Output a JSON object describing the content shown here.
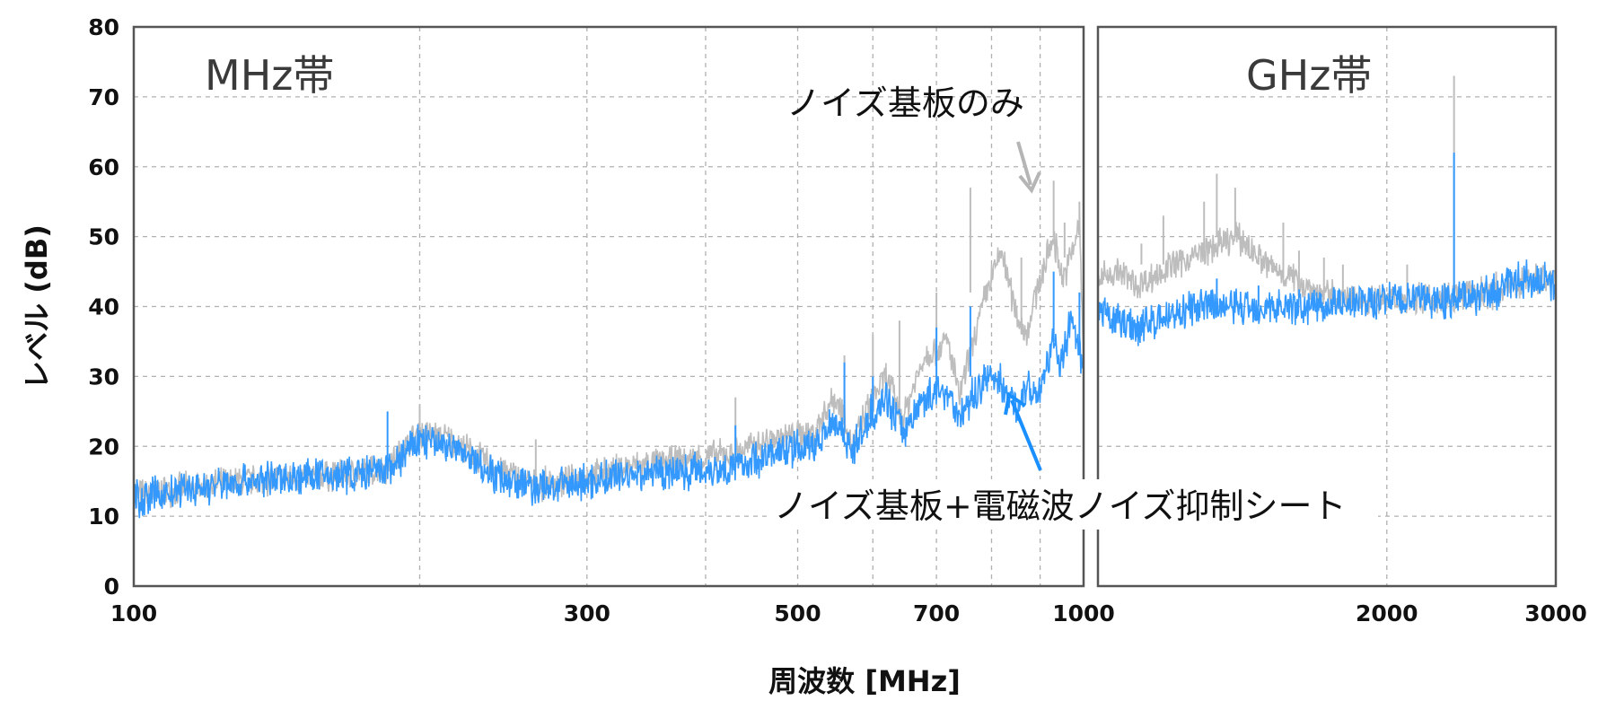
{
  "chart_data": {
    "type": "line",
    "ylabel": "レベル (dB)",
    "xlabel": "周波数 [MHz]",
    "ylim": [
      0,
      80
    ],
    "yticks": [
      "0",
      "10",
      "20",
      "30",
      "40",
      "50",
      "60",
      "70",
      "80"
    ],
    "grid": true,
    "xscale": "log",
    "panels": [
      {
        "label": "MHz帯",
        "xlim": [
          100,
          1000
        ],
        "xticks": [
          "100",
          "300",
          "500",
          "700",
          "1000"
        ],
        "xgrid": [
          200,
          300,
          400,
          500,
          600,
          700,
          800,
          900
        ]
      },
      {
        "label": "GHz帯",
        "xlim": [
          1000,
          3000
        ],
        "xticks": [
          "2000",
          "3000"
        ],
        "xgrid": [
          2000
        ]
      }
    ],
    "colors": {
      "board_only": "#bdbdbd",
      "with_sheet": "#3399ff",
      "axis": "#555555",
      "grid": "#b0b0b0"
    },
    "series": [
      {
        "name": "ノイズ基板のみ",
        "points": [
          [
            100,
            13
          ],
          [
            130,
            15
          ],
          [
            170,
            16
          ],
          [
            185,
            17
          ],
          [
            200,
            22
          ],
          [
            215,
            21
          ],
          [
            240,
            17
          ],
          [
            265,
            14.5
          ],
          [
            290,
            15
          ],
          [
            330,
            17
          ],
          [
            380,
            18
          ],
          [
            430,
            19
          ],
          [
            470,
            21
          ],
          [
            520,
            22
          ],
          [
            545,
            27
          ],
          [
            560,
            25
          ],
          [
            570,
            20
          ],
          [
            600,
            27
          ],
          [
            620,
            30
          ],
          [
            645,
            24
          ],
          [
            680,
            33
          ],
          [
            720,
            35
          ],
          [
            740,
            27
          ],
          [
            790,
            42
          ],
          [
            820,
            48
          ],
          [
            845,
            40
          ],
          [
            870,
            36
          ],
          [
            900,
            44
          ],
          [
            930,
            50
          ],
          [
            950,
            44
          ],
          [
            970,
            47
          ],
          [
            990,
            52
          ],
          [
            1000,
            32
          ],
          [
            1000,
            44
          ],
          [
            1050,
            45
          ],
          [
            1100,
            43
          ],
          [
            1200,
            46
          ],
          [
            1300,
            48
          ],
          [
            1400,
            50
          ],
          [
            1500,
            46
          ],
          [
            1600,
            44
          ],
          [
            1700,
            42
          ],
          [
            1800,
            41
          ],
          [
            2000,
            41
          ],
          [
            2300,
            41.5
          ],
          [
            2600,
            42
          ],
          [
            2800,
            44
          ],
          [
            3000,
            44
          ]
        ],
        "spikes": [
          [
            200,
            26
          ],
          [
            265,
            21
          ],
          [
            430,
            27
          ],
          [
            560,
            33
          ],
          [
            600,
            36
          ],
          [
            640,
            38
          ],
          [
            700,
            42
          ],
          [
            760,
            57
          ],
          [
            860,
            47
          ],
          [
            930,
            58
          ],
          [
            955,
            52
          ],
          [
            990,
            55
          ],
          [
            1110,
            49
          ],
          [
            1170,
            53
          ],
          [
            1290,
            55
          ],
          [
            1330,
            59
          ],
          [
            1390,
            57
          ],
          [
            1470,
            47
          ],
          [
            1560,
            52
          ],
          [
            1620,
            48
          ],
          [
            1720,
            47
          ],
          [
            1800,
            46
          ],
          [
            2100,
            46
          ],
          [
            2350,
            73
          ],
          [
            2600,
            45
          ]
        ]
      },
      {
        "name": "ノイズ基板+電磁波ノイズ抑制シート",
        "points": [
          [
            100,
            12.5
          ],
          [
            130,
            15
          ],
          [
            170,
            16
          ],
          [
            185,
            16.5
          ],
          [
            200,
            21
          ],
          [
            215,
            20
          ],
          [
            240,
            16
          ],
          [
            265,
            14
          ],
          [
            290,
            14.5
          ],
          [
            330,
            16
          ],
          [
            380,
            16.5
          ],
          [
            430,
            17
          ],
          [
            470,
            19
          ],
          [
            520,
            20
          ],
          [
            545,
            24
          ],
          [
            560,
            22
          ],
          [
            570,
            19
          ],
          [
            600,
            25
          ],
          [
            620,
            27
          ],
          [
            645,
            22
          ],
          [
            680,
            27
          ],
          [
            720,
            28
          ],
          [
            740,
            24
          ],
          [
            790,
            30
          ],
          [
            820,
            29
          ],
          [
            845,
            26
          ],
          [
            870,
            28
          ],
          [
            900,
            28
          ],
          [
            930,
            35
          ],
          [
            950,
            32
          ],
          [
            970,
            38
          ],
          [
            990,
            33
          ],
          [
            1000,
            31
          ],
          [
            1000,
            39
          ],
          [
            1050,
            38
          ],
          [
            1100,
            37
          ],
          [
            1200,
            39
          ],
          [
            1300,
            40
          ],
          [
            1400,
            40
          ],
          [
            1500,
            40
          ],
          [
            1600,
            40
          ],
          [
            1800,
            40.5
          ],
          [
            2000,
            41
          ],
          [
            2300,
            41
          ],
          [
            2600,
            42
          ],
          [
            2800,
            44
          ],
          [
            3000,
            43.5
          ]
        ],
        "spikes": [
          [
            185,
            25
          ],
          [
            430,
            23
          ],
          [
            560,
            32
          ],
          [
            600,
            30
          ],
          [
            700,
            37
          ],
          [
            760,
            40
          ],
          [
            930,
            45
          ],
          [
            990,
            42
          ],
          [
            1330,
            44
          ],
          [
            1470,
            43
          ],
          [
            2350,
            62
          ]
        ]
      }
    ],
    "annotations": {
      "board_only_label": "ノイズ基板のみ",
      "with_sheet_label": "ノイズ基板+電磁波ノイズ抑制シート"
    }
  }
}
